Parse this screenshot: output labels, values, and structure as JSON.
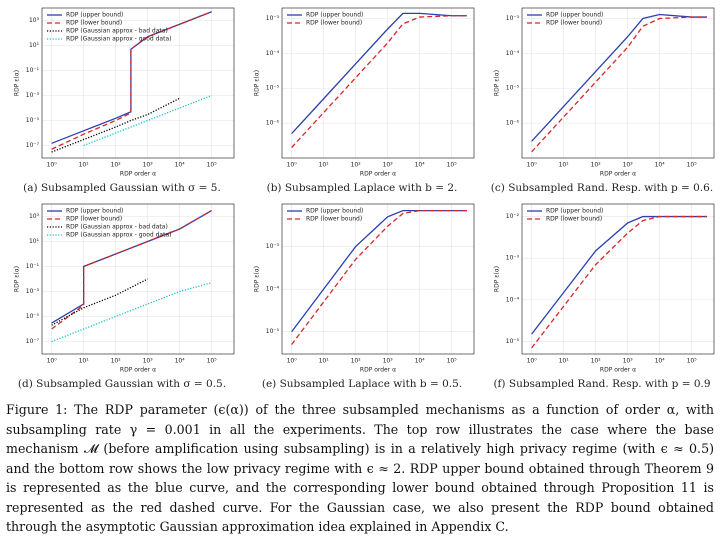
{
  "chart_data": [
    {
      "type": "line",
      "caption": "(a) Subsampled Gaussian with σ = 5.",
      "xlabel": "RDP order α",
      "ylabel": "RDP ε(α)",
      "xscale": "log",
      "yscale": "log",
      "grid": true,
      "legend": "upper-left",
      "x": [
        1,
        10,
        100,
        300,
        300,
        1000,
        10000,
        100000
      ],
      "xlim": [
        0.5,
        500000
      ],
      "xticks": [
        {
          "value": 1,
          "label": "10⁰"
        },
        {
          "value": 10,
          "label": "10¹"
        },
        {
          "value": 100,
          "label": "10²"
        },
        {
          "value": 1000,
          "label": "10³"
        },
        {
          "value": 10000,
          "label": "10⁴"
        },
        {
          "value": 100000,
          "label": "10⁵"
        }
      ],
      "ylim": [
        1e-08,
        10000
      ],
      "yticks": [
        {
          "value": 1e-07,
          "label": "10⁻⁷"
        },
        {
          "value": 1e-05,
          "label": "10⁻⁵"
        },
        {
          "value": 0.001,
          "label": "10⁻³"
        },
        {
          "value": 0.1,
          "label": "10⁻¹"
        },
        {
          "value": 10,
          "label": "10¹"
        },
        {
          "value": 1000,
          "label": "10³"
        }
      ],
      "series": [
        {
          "name": "RDP (upper bound)",
          "color": "#2b3fb0",
          "style": "solid",
          "values": [
            1.5e-07,
            1.5e-06,
            1.5e-05,
            5e-05,
            5,
            50,
            500,
            5000
          ]
        },
        {
          "name": "RDP (lower bound)",
          "color": "#d62728",
          "style": "dashed",
          "values": [
            5e-08,
            8e-07,
            1e-05,
            4e-05,
            5,
            50,
            500,
            5000
          ]
        },
        {
          "name": "RDP (Gaussian approx - bad data)",
          "color": "#000000",
          "style": "dotted",
          "values": [
            3e-08,
            3e-07,
            3e-06,
            1e-05,
            1e-05,
            3e-05,
            0.0006,
            null
          ]
        },
        {
          "name": "RDP (Gaussian approx - good data)",
          "color": "#17becf",
          "style": "dotted",
          "values": [
            null,
            1e-07,
            1e-06,
            3e-06,
            3e-06,
            1e-05,
            0.0001,
            0.001
          ]
        }
      ]
    },
    {
      "type": "line",
      "caption": "(b) Subsampled Laplace with b = 2.",
      "xlabel": "RDP order α",
      "ylabel": "RDP ε(α)",
      "xscale": "log",
      "yscale": "log",
      "grid": true,
      "legend": "upper-left",
      "x": [
        1,
        10,
        100,
        1000,
        3000,
        10000,
        100000,
        300000
      ],
      "xlim": [
        0.5,
        500000
      ],
      "xticks": [
        {
          "value": 1,
          "label": "10⁰"
        },
        {
          "value": 10,
          "label": "10¹"
        },
        {
          "value": 100,
          "label": "10²"
        },
        {
          "value": 1000,
          "label": "10³"
        },
        {
          "value": 10000,
          "label": "10⁴"
        },
        {
          "value": 100000,
          "label": "10⁵"
        }
      ],
      "ylim": [
        1e-07,
        0.002
      ],
      "yticks": [
        {
          "value": 1e-06,
          "label": "10⁻⁶"
        },
        {
          "value": 1e-05,
          "label": "10⁻⁵"
        },
        {
          "value": 0.0001,
          "label": "10⁻⁴"
        },
        {
          "value": 0.001,
          "label": "10⁻³"
        }
      ],
      "series": [
        {
          "name": "RDP (upper bound)",
          "color": "#2b3fb0",
          "style": "solid",
          "values": [
            5e-07,
            5e-06,
            5e-05,
            0.0005,
            0.0014,
            0.0014,
            0.0012,
            0.0012
          ]
        },
        {
          "name": "RDP (lower bound)",
          "color": "#d62728",
          "style": "dashed",
          "values": [
            2e-07,
            2e-06,
            2e-05,
            0.0002,
            0.0007,
            0.0011,
            0.0012,
            0.0012
          ]
        }
      ]
    },
    {
      "type": "line",
      "caption": "(c) Subsampled Rand. Resp. with p = 0.6.",
      "xlabel": "RDP order α",
      "ylabel": "RDP ε(α)",
      "xscale": "log",
      "yscale": "log",
      "grid": true,
      "legend": "upper-left",
      "x": [
        1,
        10,
        100,
        1000,
        3000,
        10000,
        100000,
        300000
      ],
      "xlim": [
        0.5,
        500000
      ],
      "xticks": [
        {
          "value": 1,
          "label": "10⁰"
        },
        {
          "value": 10,
          "label": "10¹"
        },
        {
          "value": 100,
          "label": "10²"
        },
        {
          "value": 1000,
          "label": "10³"
        },
        {
          "value": 10000,
          "label": "10⁴"
        },
        {
          "value": 100000,
          "label": "10⁵"
        }
      ],
      "ylim": [
        1e-07,
        0.002
      ],
      "yticks": [
        {
          "value": 1e-06,
          "label": "10⁻⁶"
        },
        {
          "value": 1e-05,
          "label": "10⁻⁵"
        },
        {
          "value": 0.0001,
          "label": "10⁻⁴"
        },
        {
          "value": 0.001,
          "label": "10⁻³"
        }
      ],
      "series": [
        {
          "name": "RDP (upper bound)",
          "color": "#2b3fb0",
          "style": "solid",
          "values": [
            3e-07,
            3e-06,
            3e-05,
            0.0003,
            0.001,
            0.0013,
            0.0011,
            0.0011
          ]
        },
        {
          "name": "RDP (lower bound)",
          "color": "#d62728",
          "style": "dashed",
          "values": [
            1.5e-07,
            1.5e-06,
            1.5e-05,
            0.00015,
            0.0006,
            0.001,
            0.0011,
            0.0011
          ]
        }
      ]
    },
    {
      "type": "line",
      "caption": "(d) Subsampled Gaussian with σ = 0.5.",
      "xlabel": "RDP order α",
      "ylabel": "RDP ε(α)",
      "xscale": "log",
      "yscale": "log",
      "grid": true,
      "legend": "upper-left",
      "x": [
        1,
        10,
        10,
        100,
        1000,
        10000,
        100000
      ],
      "xlim": [
        0.5,
        500000
      ],
      "xticks": [
        {
          "value": 1,
          "label": "10⁰"
        },
        {
          "value": 10,
          "label": "10¹"
        },
        {
          "value": 100,
          "label": "10²"
        },
        {
          "value": 1000,
          "label": "10³"
        },
        {
          "value": 10000,
          "label": "10⁴"
        },
        {
          "value": 100000,
          "label": "10⁵"
        }
      ],
      "ylim": [
        1e-08,
        10000
      ],
      "yticks": [
        {
          "value": 1e-07,
          "label": "10⁻⁷"
        },
        {
          "value": 1e-05,
          "label": "10⁻⁵"
        },
        {
          "value": 0.001,
          "label": "10⁻³"
        },
        {
          "value": 0.1,
          "label": "10⁻¹"
        },
        {
          "value": 10,
          "label": "10¹"
        },
        {
          "value": 1000,
          "label": "10³"
        }
      ],
      "series": [
        {
          "name": "RDP (upper bound)",
          "color": "#2b3fb0",
          "style": "solid",
          "values": [
            3e-06,
            0.0001,
            0.1,
            1,
            10,
            100,
            3000
          ]
        },
        {
          "name": "RDP (lower bound)",
          "color": "#d62728",
          "style": "dashed",
          "values": [
            1e-06,
            8e-05,
            0.1,
            1,
            10,
            100,
            3000
          ]
        },
        {
          "name": "RDP (Gaussian approx - bad data)",
          "color": "#000000",
          "style": "dotted",
          "values": [
            2e-06,
            5e-05,
            5e-05,
            0.0005,
            0.01,
            null,
            null
          ]
        },
        {
          "name": "RDP (Gaussian approx - good data)",
          "color": "#17becf",
          "style": "dotted",
          "values": [
            1e-07,
            1e-06,
            1e-06,
            1e-05,
            0.0001,
            0.001,
            0.005
          ]
        }
      ]
    },
    {
      "type": "line",
      "caption": "(e) Subsampled Laplace with b = 0.5.",
      "xlabel": "RDP order α",
      "ylabel": "RDP ε(α)",
      "xscale": "log",
      "yscale": "log",
      "grid": true,
      "legend": "upper-left",
      "x": [
        1,
        10,
        100,
        1000,
        3000,
        10000,
        100000,
        300000
      ],
      "xlim": [
        0.5,
        500000
      ],
      "xticks": [
        {
          "value": 1,
          "label": "10⁰"
        },
        {
          "value": 10,
          "label": "10¹"
        },
        {
          "value": 100,
          "label": "10²"
        },
        {
          "value": 1000,
          "label": "10³"
        },
        {
          "value": 10000,
          "label": "10⁴"
        },
        {
          "value": 100000,
          "label": "10⁵"
        }
      ],
      "ylim": [
        3e-06,
        0.01
      ],
      "yticks": [
        {
          "value": 1e-05,
          "label": "10⁻⁵"
        },
        {
          "value": 0.0001,
          "label": "10⁻⁴"
        },
        {
          "value": 0.001,
          "label": "10⁻³"
        }
      ],
      "series": [
        {
          "name": "RDP (upper bound)",
          "color": "#2b3fb0",
          "style": "solid",
          "values": [
            1e-05,
            0.0001,
            0.001,
            0.005,
            0.007,
            0.007,
            0.007,
            0.007
          ]
        },
        {
          "name": "RDP (lower bound)",
          "color": "#d62728",
          "style": "dashed",
          "values": [
            5e-06,
            5e-05,
            0.0005,
            0.003,
            0.006,
            0.007,
            0.007,
            0.007
          ]
        }
      ]
    },
    {
      "type": "line",
      "caption": "(f) Subsampled Rand. Resp. with p = 0.9",
      "xlabel": "RDP order α",
      "ylabel": "RDP ε(α)",
      "xscale": "log",
      "yscale": "log",
      "grid": true,
      "legend": "upper-left",
      "x": [
        1,
        10,
        100,
        1000,
        3000,
        10000,
        100000,
        300000
      ],
      "xlim": [
        0.5,
        500000
      ],
      "xticks": [
        {
          "value": 1,
          "label": "10⁰"
        },
        {
          "value": 10,
          "label": "10¹"
        },
        {
          "value": 100,
          "label": "10²"
        },
        {
          "value": 1000,
          "label": "10³"
        },
        {
          "value": 10000,
          "label": "10⁴"
        },
        {
          "value": 100000,
          "label": "10⁵"
        }
      ],
      "ylim": [
        5e-06,
        0.02
      ],
      "yticks": [
        {
          "value": 1e-05,
          "label": "10⁻⁵"
        },
        {
          "value": 0.0001,
          "label": "10⁻⁴"
        },
        {
          "value": 0.001,
          "label": "10⁻³"
        },
        {
          "value": 0.01,
          "label": "10⁻²"
        }
      ],
      "series": [
        {
          "name": "RDP (upper bound)",
          "color": "#2b3fb0",
          "style": "solid",
          "values": [
            1.5e-05,
            0.00015,
            0.0015,
            0.007,
            0.01,
            0.01,
            0.01,
            0.01
          ]
        },
        {
          "name": "RDP (lower bound)",
          "color": "#d62728",
          "style": "dashed",
          "values": [
            7e-06,
            7e-05,
            0.0007,
            0.004,
            0.008,
            0.01,
            0.01,
            0.01
          ]
        }
      ]
    }
  ],
  "figure_caption": "Figure 1: The RDP parameter (ϵ(α)) of the three subsampled mechanisms as a function of order α, with subsampling rate γ = 0.001 in all the experiments. The top row illustrates the case where the base mechanism 𝓜 (before amplification using subsampling) is in a relatively high privacy regime (with ϵ ≈ 0.5) and the bottom row shows the low privacy regime with ϵ ≈ 2. RDP upper bound obtained through Theorem 9 is represented as the blue curve, and the corresponding lower bound obtained through Proposition 11 is represented as the red dashed curve. For the Gaussian case, we also present the RDP bound obtained through the asymptotic Gaussian approximation idea explained in Appendix C."
}
